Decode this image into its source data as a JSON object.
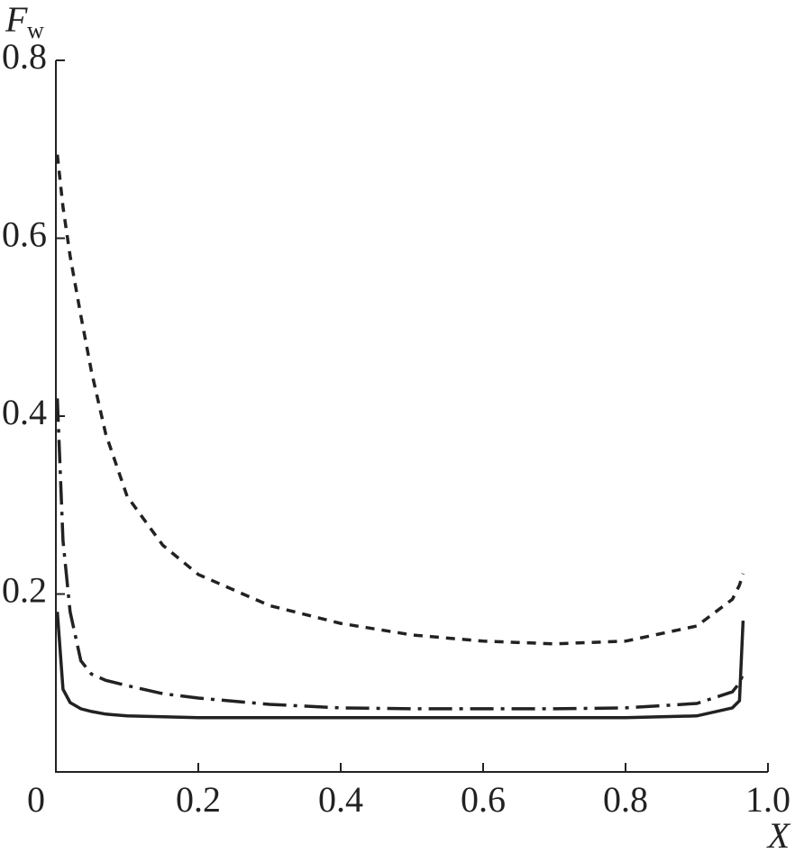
{
  "chart_data": {
    "type": "line",
    "ylabel": "F",
    "ylabel_subscript": "w",
    "xlabel": "X",
    "x": [
      0.002,
      0.01,
      0.02,
      0.035,
      0.05,
      0.07,
      0.1,
      0.15,
      0.2,
      0.3,
      0.4,
      0.5,
      0.6,
      0.7,
      0.8,
      0.9,
      0.95,
      0.96,
      0.965
    ],
    "series": [
      {
        "color": "#222222",
        "dash": "10,8",
        "values": [
          0.694,
          0.635,
          0.58,
          0.513,
          0.45,
          0.38,
          0.31,
          0.255,
          0.222,
          0.187,
          0.167,
          0.154,
          0.147,
          0.144,
          0.147,
          0.164,
          0.194,
          0.21,
          0.223
        ]
      },
      {
        "color": "#222222",
        "dash": "26,8,4,8",
        "values": [
          0.42,
          0.26,
          0.18,
          0.125,
          0.11,
          0.103,
          0.097,
          0.088,
          0.083,
          0.076,
          0.072,
          0.071,
          0.071,
          0.071,
          0.072,
          0.077,
          0.09,
          0.1,
          0.11
        ]
      },
      {
        "color": "#222222",
        "dash": "none",
        "values": [
          0.18,
          0.093,
          0.078,
          0.071,
          0.068,
          0.065,
          0.063,
          0.062,
          0.061,
          0.061,
          0.061,
          0.061,
          0.061,
          0.061,
          0.061,
          0.063,
          0.072,
          0.08,
          0.17
        ]
      }
    ],
    "xlim": [
      0,
      1
    ],
    "ylim": [
      0,
      0.8
    ],
    "xticks": [
      0,
      0.2,
      0.4,
      0.6,
      0.8,
      {
        "value": 1,
        "label": "1.0"
      }
    ],
    "yticks": [
      0.2,
      0.4,
      0.6,
      0.8
    ],
    "grid": false
  }
}
